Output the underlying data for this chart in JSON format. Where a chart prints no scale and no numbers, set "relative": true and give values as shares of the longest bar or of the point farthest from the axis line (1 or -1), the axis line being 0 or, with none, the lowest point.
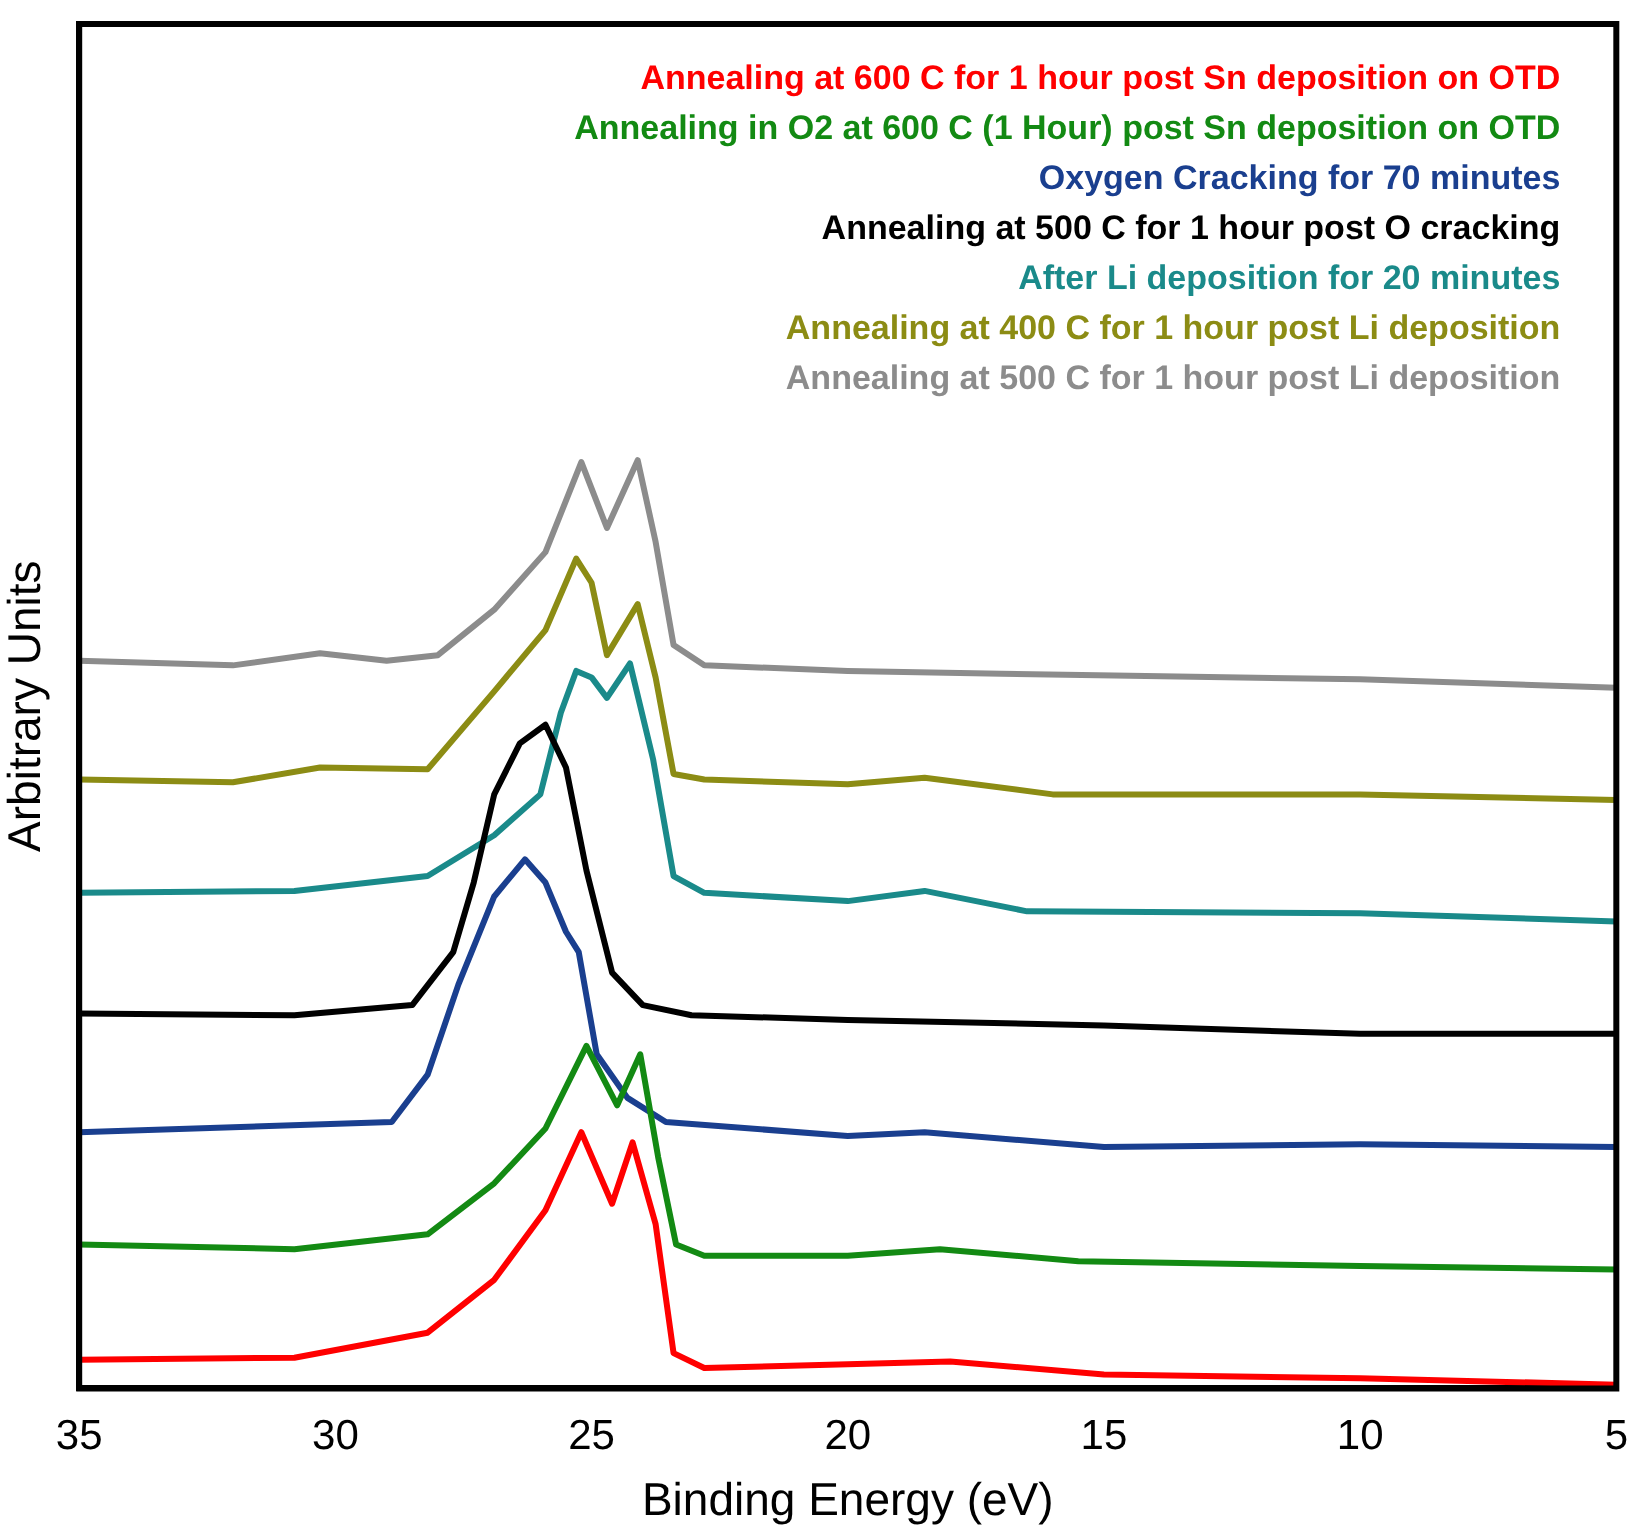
{
  "chart_data": {
    "type": "line",
    "xlabel": "Binding Energy (eV)",
    "ylabel": "Arbitrary Units",
    "relative": true,
    "xlim": [
      35,
      5
    ],
    "xticks": [
      35,
      30,
      25,
      20,
      15,
      10,
      5
    ],
    "legend": "top right",
    "grid": false,
    "marker": "none",
    "line_style": "solid",
    "series": [
      {
        "name": "Annealing at 600 C for 1 hour post Sn deposition on OTD",
        "color": "#ff0000",
        "x": [
          35,
          30.8,
          28.2,
          26.9,
          25.9,
          25.2,
          24.6,
          24.2,
          23.75,
          23.4,
          22.8,
          20,
          18,
          15,
          10,
          5
        ],
        "values": [
          0.031,
          0.033,
          0.06,
          0.117,
          0.192,
          0.276,
          0.199,
          0.265,
          0.177,
          0.038,
          0.022,
          0.026,
          0.029,
          0.015,
          0.011,
          0.004
        ]
      },
      {
        "name": "Annealing in O2 at 600 C (1 Hour) post Sn deposition on OTD",
        "color": "#138a13",
        "x": [
          35,
          30.8,
          28.2,
          26.9,
          25.9,
          25.1,
          24.5,
          24.05,
          23.7,
          23.35,
          22.8,
          20,
          18.2,
          15.5,
          10,
          5
        ],
        "values": [
          0.155,
          0.15,
          0.166,
          0.221,
          0.28,
          0.369,
          0.305,
          0.36,
          0.249,
          0.155,
          0.143,
          0.143,
          0.15,
          0.137,
          0.132,
          0.128
        ]
      },
      {
        "name": "Oxygen Cracking for 70 minutes",
        "color": "#1a3f8f",
        "x": [
          35,
          28.9,
          28.2,
          27.6,
          26.9,
          26.3,
          25.9,
          25.5,
          25.25,
          24.9,
          24.3,
          23.55,
          20,
          18.5,
          15,
          10,
          5
        ],
        "values": [
          0.276,
          0.287,
          0.338,
          0.435,
          0.53,
          0.57,
          0.545,
          0.492,
          0.47,
          0.36,
          0.313,
          0.287,
          0.272,
          0.276,
          0.26,
          0.263,
          0.26
        ]
      },
      {
        "name": "Annealing at 500 C for 1 hour post O cracking",
        "color": "#000000",
        "x": [
          35,
          30.8,
          28.5,
          27.7,
          27.3,
          26.9,
          26.4,
          25.9,
          25.5,
          25.1,
          24.6,
          24,
          23.05,
          20,
          15,
          10,
          5
        ],
        "values": [
          0.404,
          0.402,
          0.413,
          0.47,
          0.545,
          0.64,
          0.695,
          0.715,
          0.669,
          0.558,
          0.448,
          0.413,
          0.402,
          0.397,
          0.391,
          0.382,
          0.382
        ]
      },
      {
        "name": "After Li deposition for 20 minutes",
        "color": "#1a8a8a",
        "x": [
          35,
          30.8,
          28.2,
          26.9,
          26,
          25.6,
          25.3,
          25,
          24.7,
          24.25,
          23.8,
          23.4,
          22.8,
          20,
          18.5,
          16.5,
          10,
          5
        ],
        "values": [
          0.534,
          0.536,
          0.552,
          0.596,
          0.64,
          0.728,
          0.773,
          0.766,
          0.744,
          0.781,
          0.678,
          0.552,
          0.534,
          0.525,
          0.536,
          0.514,
          0.512,
          0.503
        ]
      },
      {
        "name": "Annealing at 400 C for 1 hour post Li deposition",
        "color": "#8c8c14",
        "x": [
          35,
          32,
          30.3,
          28.2,
          26.9,
          25.9,
          25.3,
          25,
          24.7,
          24.1,
          23.75,
          23.4,
          22.8,
          20,
          18.5,
          16,
          10,
          5
        ],
        "values": [
          0.656,
          0.653,
          0.669,
          0.667,
          0.751,
          0.817,
          0.894,
          0.868,
          0.79,
          0.845,
          0.766,
          0.662,
          0.656,
          0.651,
          0.658,
          0.64,
          0.64,
          0.634
        ]
      },
      {
        "name": "Annealing at 500 C for 1 hour post Li deposition",
        "color": "#8c8c8c",
        "x": [
          35,
          32,
          30.3,
          29,
          28,
          26.9,
          25.9,
          25.2,
          24.7,
          24.1,
          23.75,
          23.4,
          22.8,
          20,
          17,
          14.8,
          10,
          5
        ],
        "values": [
          0.784,
          0.779,
          0.792,
          0.784,
          0.79,
          0.839,
          0.901,
          0.998,
          0.927,
          1,
          0.912,
          0.801,
          0.779,
          0.773,
          0.77,
          0.768,
          0.764,
          0.755
        ]
      }
    ]
  }
}
